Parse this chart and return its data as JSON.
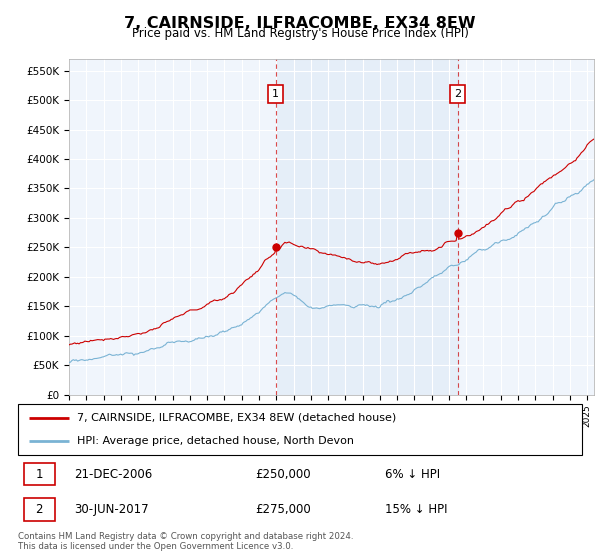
{
  "title": "7, CAIRNSIDE, ILFRACOMBE, EX34 8EW",
  "subtitle": "Price paid vs. HM Land Registry's House Price Index (HPI)",
  "ylabel_ticks": [
    "£0",
    "£50K",
    "£100K",
    "£150K",
    "£200K",
    "£250K",
    "£300K",
    "£350K",
    "£400K",
    "£450K",
    "£500K",
    "£550K"
  ],
  "ytick_values": [
    0,
    50000,
    100000,
    150000,
    200000,
    250000,
    300000,
    350000,
    400000,
    450000,
    500000,
    550000
  ],
  "ylim": [
    0,
    570000
  ],
  "hpi_color": "#7ab3d4",
  "price_color": "#cc0000",
  "annotation_box_color": "#cc0000",
  "background_color": "#dce8f5",
  "bg_white": "#f0f5fc",
  "sale1_date_label": "21-DEC-2006",
  "sale1_price": 250000,
  "sale1_note": "6% ↓ HPI",
  "sale2_date_label": "30-JUN-2017",
  "sale2_price": 275000,
  "sale2_note": "15% ↓ HPI",
  "legend_line1": "7, CAIRNSIDE, ILFRACOMBE, EX34 8EW (detached house)",
  "legend_line2": "HPI: Average price, detached house, North Devon",
  "footer": "Contains HM Land Registry data © Crown copyright and database right 2024.\nThis data is licensed under the Open Government Licence v3.0.",
  "sale1_x": 2006.97,
  "sale2_x": 2017.5,
  "xlim_start": 1995.0,
  "xlim_end": 2025.4
}
